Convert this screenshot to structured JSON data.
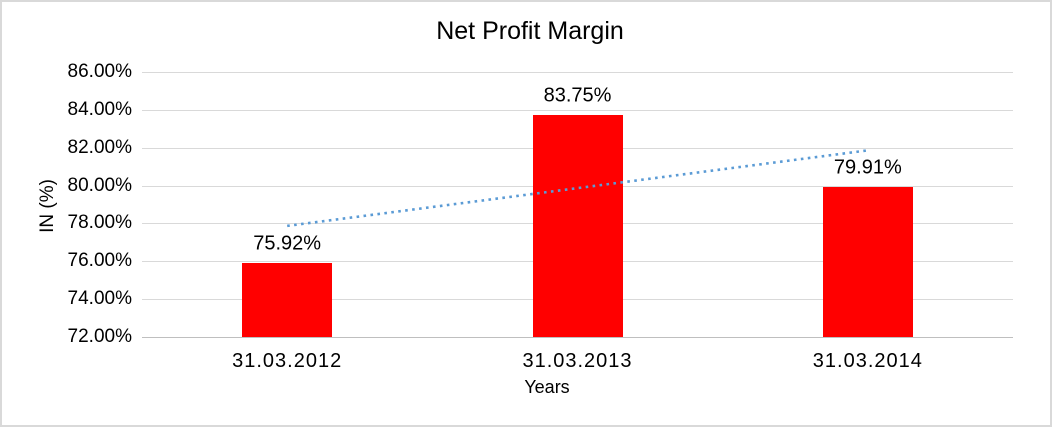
{
  "chart_data": {
    "type": "bar",
    "title": "Net Profit Margin",
    "xlabel": "Years",
    "ylabel": "IN (%)",
    "categories": [
      "31.03.2012",
      "31.03.2013",
      "31.03.2014"
    ],
    "values": [
      75.92,
      83.75,
      79.91
    ],
    "data_labels": [
      "75.92%",
      "83.75%",
      "79.91%"
    ],
    "ylim": [
      72,
      86
    ],
    "ytick_step": 2,
    "ytick_labels": [
      "72.00%",
      "74.00%",
      "76.00%",
      "78.00%",
      "80.00%",
      "82.00%",
      "84.00%",
      "86.00%"
    ],
    "grid": true,
    "legend": "none",
    "bar_color": "#ff0000",
    "trendline": {
      "type": "linear",
      "style": "dotted",
      "color": "#5b9bd5",
      "start_value": 77.87,
      "end_value": 81.86
    },
    "colors": {
      "gridline": "#d9d9d9",
      "axis_line": "#bfbfbf",
      "text": "#000000",
      "frame_border": "#d9d9d9",
      "background": "#ffffff"
    }
  }
}
